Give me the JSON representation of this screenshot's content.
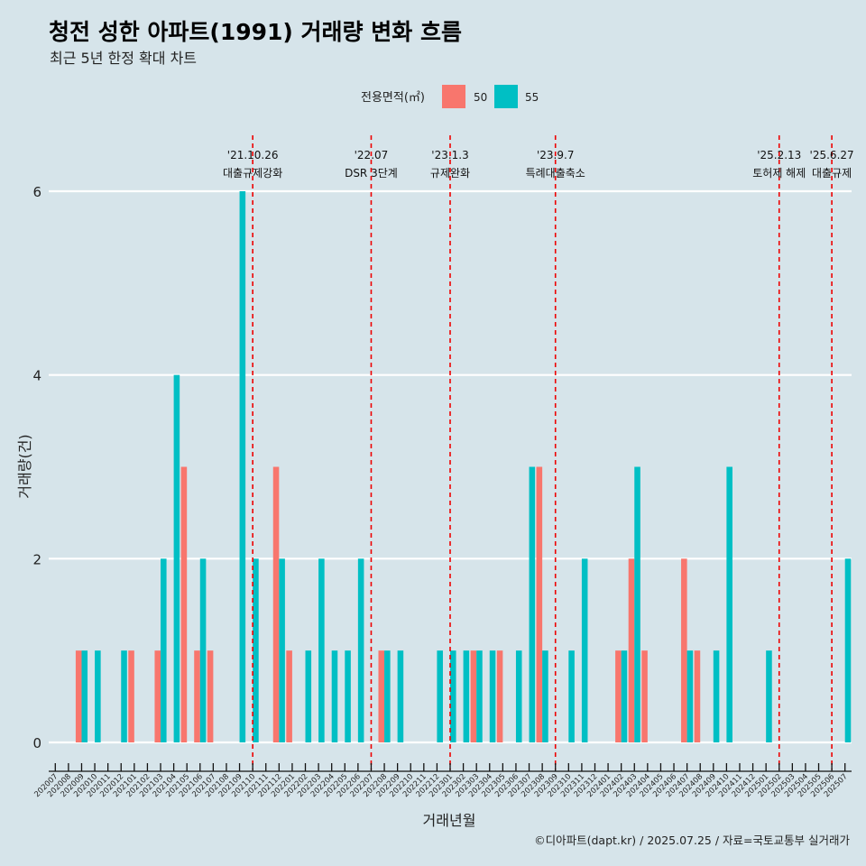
{
  "chart_data": {
    "type": "bar",
    "title": "청전 성한 아파트(1991) 거래량 변화 흐름",
    "subtitle": "최근 5년 한정 확대 차트",
    "xlabel": "거래년월",
    "ylabel": "거래량(건)",
    "ylim": [
      0,
      6
    ],
    "yticks": [
      0,
      2,
      4,
      6
    ],
    "grid": "horizontal",
    "legend": {
      "title": "전용면적(㎡)",
      "position": "top",
      "entries": [
        {
          "name": "50",
          "color": "#f8766d"
        },
        {
          "name": "55",
          "color": "#00bfc4"
        }
      ]
    },
    "categories": [
      "202007",
      "202008",
      "202009",
      "202010",
      "202011",
      "202012",
      "202101",
      "202102",
      "202103",
      "202104",
      "202105",
      "202106",
      "202107",
      "202108",
      "202109",
      "202110",
      "202111",
      "202112",
      "202201",
      "202202",
      "202203",
      "202204",
      "202205",
      "202206",
      "202207",
      "202208",
      "202209",
      "202210",
      "202211",
      "202212",
      "202301",
      "202302",
      "202303",
      "202304",
      "202305",
      "202306",
      "202307",
      "202308",
      "202309",
      "202310",
      "202311",
      "202312",
      "202401",
      "202402",
      "202403",
      "202404",
      "202405",
      "202406",
      "202407",
      "202408",
      "202409",
      "202410",
      "202411",
      "202412",
      "202501",
      "202502",
      "202503",
      "202504",
      "202505",
      "202506",
      "202507"
    ],
    "series": [
      {
        "name": "50",
        "color": "#f8766d",
        "values": [
          0,
          0,
          1,
          0,
          0,
          0,
          1,
          0,
          1,
          0,
          3,
          1,
          1,
          0,
          0,
          0,
          0,
          3,
          1,
          0,
          0,
          0,
          0,
          0,
          0,
          1,
          0,
          0,
          0,
          0,
          0,
          0,
          1,
          0,
          1,
          0,
          0,
          3,
          0,
          0,
          0,
          0,
          0,
          1,
          2,
          1,
          0,
          0,
          2,
          1,
          0,
          0,
          0,
          0,
          0,
          0,
          0,
          0,
          0,
          0,
          0
        ]
      },
      {
        "name": "55",
        "color": "#00bfc4",
        "values": [
          0,
          0,
          1,
          1,
          0,
          1,
          0,
          0,
          2,
          4,
          0,
          2,
          0,
          0,
          6,
          2,
          0,
          2,
          0,
          1,
          2,
          1,
          1,
          2,
          0,
          1,
          1,
          0,
          0,
          1,
          1,
          1,
          1,
          1,
          0,
          1,
          3,
          1,
          0,
          1,
          2,
          0,
          0,
          1,
          3,
          0,
          0,
          0,
          1,
          0,
          1,
          3,
          0,
          0,
          1,
          0,
          0,
          0,
          0,
          0,
          2
        ]
      }
    ],
    "annotations": [
      {
        "category": "202110",
        "date": "'21.10.26",
        "label": "대출규제강화"
      },
      {
        "category": "202207",
        "date": "'22.07",
        "label": "DSR 3단계"
      },
      {
        "category": "202301",
        "date": "'23.1.3",
        "label": "규제완화"
      },
      {
        "category": "202309",
        "date": "'23.9.7",
        "label": "특례대출축소"
      },
      {
        "category": "202502",
        "date": "'25.2.13",
        "label": "토허제 해제"
      },
      {
        "category": "202506",
        "date": "'25.6.27",
        "label": "대출규제"
      }
    ],
    "annotation_color": "#ee0000",
    "caption": "©디아파트(dapt.kr) / 2025.07.25 / 자료=국토교통부 실거래가"
  }
}
